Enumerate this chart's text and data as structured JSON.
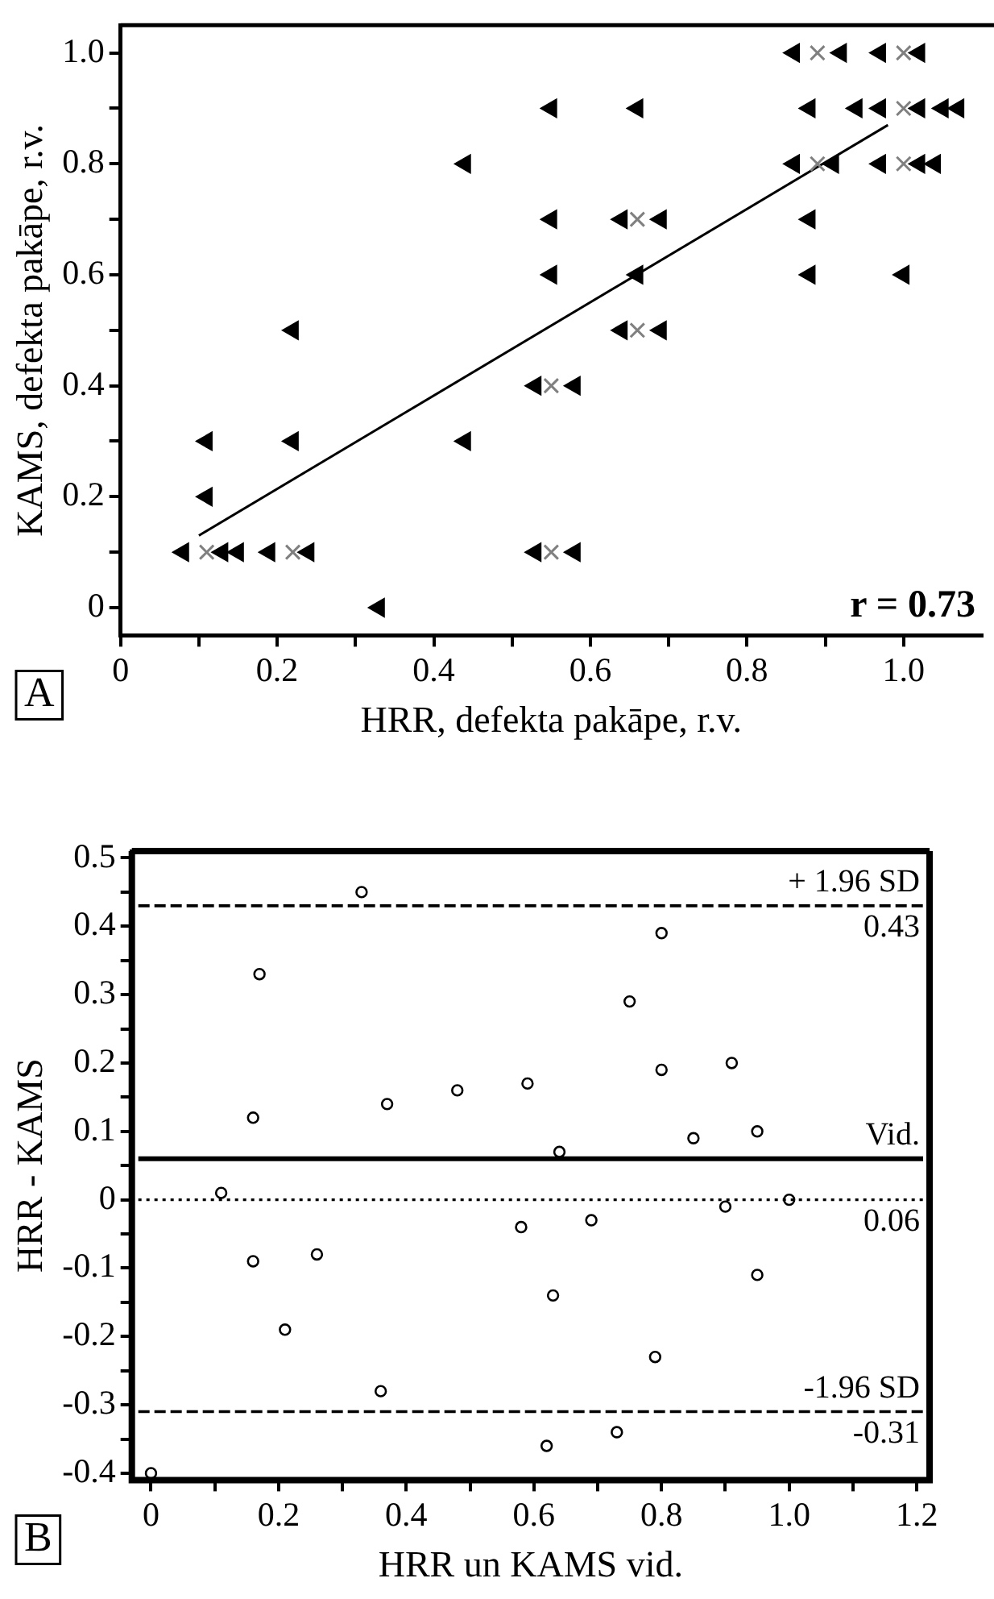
{
  "chart_data": [
    {
      "type": "scatter",
      "xlabel": "HRR, defekta pakāpe, r.v.",
      "ylabel": "KAMS, defekta pakāpe, r.v.",
      "xlim": [
        0,
        1.1
      ],
      "ylim": [
        -0.05,
        1.05
      ],
      "xticks": [
        0,
        {
          "value": 0.1,
          "label": null
        },
        0.2,
        {
          "value": 0.3,
          "label": null
        },
        0.4,
        {
          "value": 0.5,
          "label": null
        },
        0.6,
        {
          "value": 0.7,
          "label": null
        },
        0.8,
        {
          "value": 0.9,
          "label": null
        },
        {
          "value": 1,
          "label": "1.0"
        }
      ],
      "yticks": [
        0,
        {
          "value": 0.1,
          "label": null
        },
        0.2,
        {
          "value": 0.3,
          "label": null
        },
        0.4,
        {
          "value": 0.5,
          "label": null
        },
        0.6,
        {
          "value": 0.7,
          "label": null
        },
        0.8,
        {
          "value": 0.9,
          "label": null
        },
        {
          "value": 1,
          "label": "1.0"
        }
      ],
      "grid": false,
      "legend": false,
      "series": [
        {
          "marker": "triangle",
          "color": "#000000",
          "x": [
            0.86,
            0.92,
            0.97,
            1.02,
            0.55,
            0.66,
            0.88,
            0.94,
            0.97,
            1.02,
            1.05,
            1.07,
            0.44,
            0.86,
            0.91,
            0.97,
            1.02,
            1.04,
            0.55,
            0.64,
            0.69,
            0.88,
            0.55,
            0.66,
            0.88,
            1.0,
            0.22,
            0.64,
            0.69,
            0.53,
            0.58,
            0.11,
            0.22,
            0.44,
            0.11,
            0.08,
            0.13,
            0.15,
            0.19,
            0.24,
            0.53,
            0.58,
            0.33
          ],
          "values": [
            1.0,
            1.0,
            1.0,
            1.0,
            0.9,
            0.9,
            0.9,
            0.9,
            0.9,
            0.9,
            0.9,
            0.9,
            0.8,
            0.8,
            0.8,
            0.8,
            0.8,
            0.8,
            0.7,
            0.7,
            0.7,
            0.7,
            0.6,
            0.6,
            0.6,
            0.6,
            0.5,
            0.5,
            0.5,
            0.4,
            0.4,
            0.3,
            0.3,
            0.3,
            0.2,
            0.1,
            0.1,
            0.1,
            0.1,
            0.1,
            0.1,
            0.1,
            0
          ]
        },
        {
          "marker": "cross",
          "color": "#808080",
          "x": [
            0.89,
            1.0,
            1.0,
            0.89,
            1.0,
            0.66,
            0.66,
            0.55,
            0.11,
            0.22,
            0.55
          ],
          "values": [
            1.0,
            1.0,
            0.9,
            0.8,
            0.8,
            0.7,
            0.5,
            0.4,
            0.1,
            0.1,
            0.1
          ]
        },
        {
          "type": "line",
          "marker": "none",
          "color": "#000000",
          "x": [
            0.1,
            0.98
          ],
          "values": [
            0.13,
            0.87
          ]
        }
      ],
      "annotations": [
        "r = 0.73",
        "A"
      ]
    },
    {
      "type": "scatter",
      "xlabel": "HRR un KAMS vid.",
      "ylabel": "HRR - KAMS",
      "xlim": [
        -0.03,
        1.22
      ],
      "ylim": [
        -0.41,
        0.51
      ],
      "xticks": [
        0,
        {
          "value": 0.1,
          "label": null
        },
        0.2,
        {
          "value": 0.3,
          "label": null
        },
        0.4,
        {
          "value": 0.5,
          "label": null
        },
        0.6,
        {
          "value": 0.7,
          "label": null
        },
        0.8,
        {
          "value": 0.9,
          "label": null
        },
        {
          "value": 1,
          "label": "1.0"
        },
        {
          "value": 1.1,
          "label": null
        },
        1.2
      ],
      "yticks": [
        -0.4,
        {
          "value": -0.35,
          "label": null
        },
        -0.3,
        {
          "value": -0.25,
          "label": null
        },
        -0.2,
        {
          "value": -0.15,
          "label": null
        },
        -0.1,
        {
          "value": -0.05,
          "label": null
        },
        0,
        {
          "value": 0.05,
          "label": null
        },
        0.1,
        {
          "value": 0.15,
          "label": null
        },
        0.2,
        {
          "value": 0.25,
          "label": null
        },
        0.3,
        {
          "value": 0.35,
          "label": null
        },
        0.4,
        {
          "value": 0.45,
          "label": null
        },
        0.5
      ],
      "grid": false,
      "legend": false,
      "series": [
        {
          "marker": "circle",
          "color": "#000000",
          "x": [
            0.33,
            0.8,
            0.17,
            0.75,
            0.8,
            0.91,
            0.59,
            0.48,
            0.37,
            0.16,
            0.64,
            0.85,
            0.95,
            0.11,
            1.0,
            0.9,
            0.58,
            0.69,
            0.16,
            0.26,
            0.95,
            0.63,
            0.21,
            0.79,
            0.36,
            0.73,
            0.62,
            0.0
          ],
          "values": [
            0.45,
            0.39,
            0.33,
            0.29,
            0.19,
            0.2,
            0.17,
            0.16,
            0.14,
            0.12,
            0.07,
            0.09,
            0.1,
            0.01,
            0,
            -0.01,
            -0.04,
            -0.03,
            -0.09,
            -0.08,
            -0.11,
            -0.14,
            -0.19,
            -0.23,
            -0.28,
            -0.34,
            -0.36,
            -0.4
          ]
        }
      ],
      "ref_lines": [
        {
          "axis": "y",
          "value": 0.43,
          "label": "+ 1.96 SD",
          "line_style": "dashed"
        },
        {
          "axis": "y",
          "value": 0.06,
          "label": "Vid.",
          "line_style": "solid"
        },
        {
          "axis": "y",
          "value": 0,
          "line_style": "dotted"
        },
        {
          "axis": "y",
          "value": -0.31,
          "label": "-1.96 SD",
          "line_style": "dashed"
        }
      ],
      "annotations": [
        {
          "text": "0.43",
          "y": 0.43
        },
        {
          "text": "0.06",
          "y": 0
        },
        {
          "text": "-0.31",
          "y": -0.31
        },
        "B"
      ]
    }
  ]
}
